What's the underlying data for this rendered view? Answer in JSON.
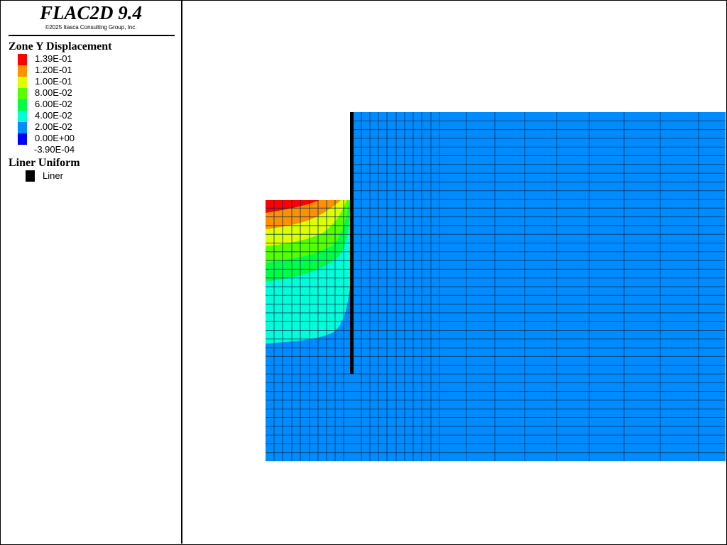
{
  "legend": {
    "app_title": "FLAC2D 9.4",
    "copyright": "©2025 Itasca Consulting Group, Inc.",
    "contour_title": "Zone Y Displacement",
    "contour_levels": [
      {
        "label": "1.39E-01",
        "color": "#ff0000"
      },
      {
        "label": "1.20E-01",
        "color": "#ff9000"
      },
      {
        "label": "1.00E-01",
        "color": "#dfff00"
      },
      {
        "label": "8.00E-02",
        "color": "#55ff00"
      },
      {
        "label": "6.00E-02",
        "color": "#00ff44"
      },
      {
        "label": "4.00E-02",
        "color": "#00ffd8"
      },
      {
        "label": "2.00E-02",
        "color": "#008cff"
      },
      {
        "label": "0.00E+00",
        "color": "#0000ff"
      },
      {
        "label": "-3.90E-04",
        "color": ""
      }
    ],
    "structure_title": "Liner Uniform",
    "structure_item": {
      "label": "Liner",
      "color": "#000000"
    }
  },
  "colors": {
    "mesh_background": "#008cff",
    "grid_line": "#00335c",
    "liner": "#000000"
  }
}
